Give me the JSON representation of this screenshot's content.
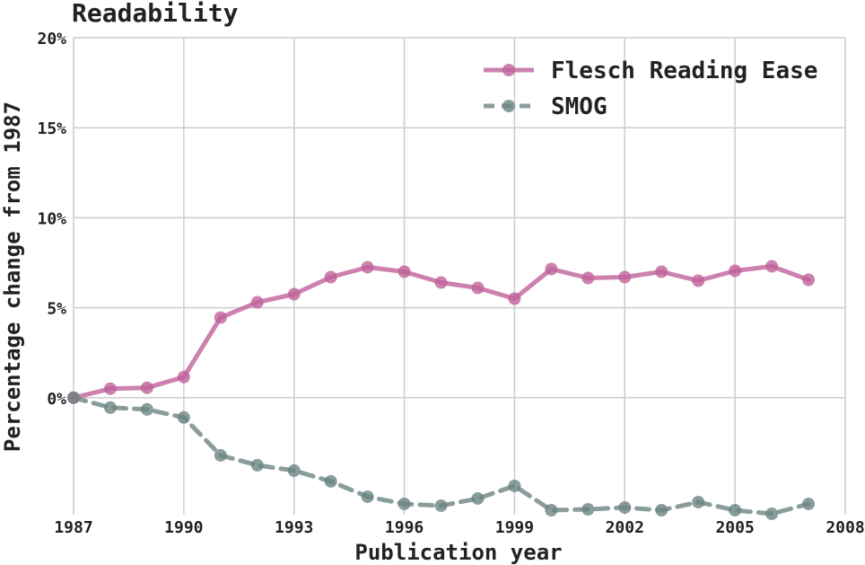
{
  "chart_data": {
    "type": "line",
    "title": "Readability",
    "xlabel": "Publication year",
    "ylabel": "Percentage change from 1987",
    "xlim": [
      1987,
      2008
    ],
    "ylim": [
      -6.5,
      20
    ],
    "x_ticks": [
      "1987",
      "1990",
      "1993",
      "1996",
      "1999",
      "2002",
      "2005",
      "2008"
    ],
    "y_ticks": [
      "0%",
      "5%",
      "10%",
      "15%",
      "20%"
    ],
    "grid": true,
    "legend_position": "top-right",
    "x": [
      1987,
      1988,
      1989,
      1990,
      1991,
      1992,
      1993,
      1994,
      1995,
      1996,
      1997,
      1998,
      1999,
      2000,
      2001,
      2002,
      2003,
      2004,
      2005,
      2006,
      2007
    ],
    "series": [
      {
        "name": "Flesch Reading Ease",
        "color": "#c0619b",
        "line_style": "solid",
        "values": [
          0.0,
          0.5,
          0.55,
          1.15,
          4.45,
          5.3,
          5.75,
          6.7,
          7.25,
          7.0,
          6.4,
          6.1,
          5.5,
          7.15,
          6.65,
          6.7,
          7.0,
          6.5,
          7.05,
          7.3,
          6.55
        ]
      },
      {
        "name": "SMOG",
        "color": "#6b8483",
        "line_style": "dashed",
        "values": [
          0.0,
          -0.55,
          -0.65,
          -1.1,
          -3.2,
          -3.75,
          -4.05,
          -4.65,
          -5.5,
          -5.9,
          -6.0,
          -5.6,
          -4.9,
          -6.25,
          -6.2,
          -6.1,
          -6.25,
          -5.8,
          -6.25,
          -6.45,
          -5.9
        ]
      }
    ]
  }
}
